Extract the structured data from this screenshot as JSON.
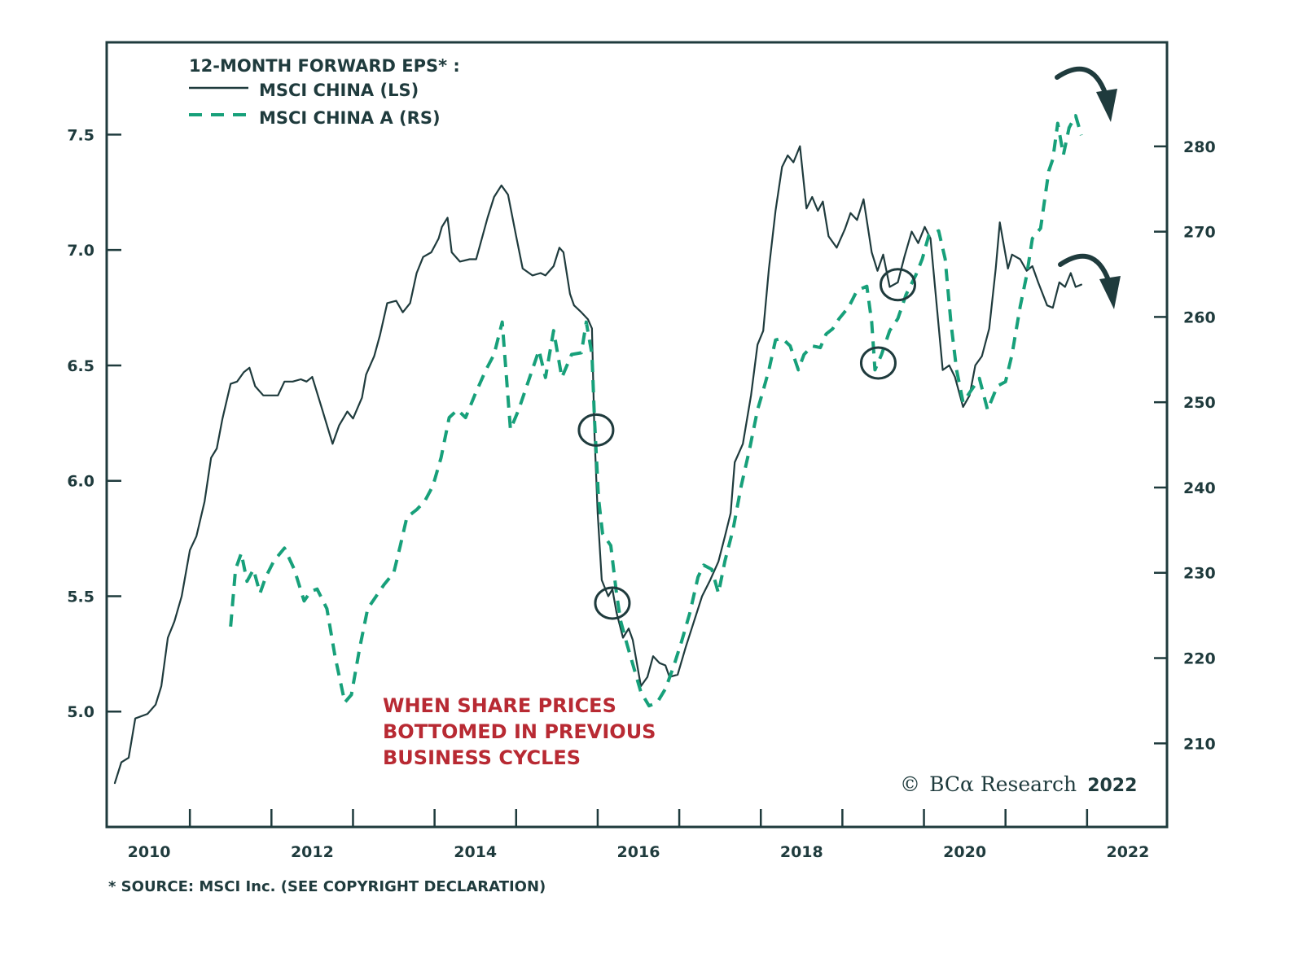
{
  "chart_data": {
    "type": "line",
    "title": "12-MONTH FORWARD EPS* :",
    "legend": {
      "placement": "top-left",
      "entries": [
        {
          "name": "MSCI CHINA (LS)",
          "style": "solid",
          "axis": "left"
        },
        {
          "name": "MSCI CHINA A (RS)",
          "style": "dashed",
          "axis": "right"
        }
      ]
    },
    "colors": {
      "msci_china": "#1f3b3d",
      "msci_china_a": "#17a07a",
      "axis": "#1f3b3d",
      "annotation": "#b82a33",
      "circle": "#1f3b3d",
      "arrow": "#1f3b3d"
    },
    "x_axis": {
      "range": [
        2009.98,
        2022.98
      ],
      "tick_labels": [
        "2010",
        "2012",
        "2014",
        "2016",
        "2018",
        "2020",
        "2022"
      ],
      "tick_label_years": [
        2010.5,
        2012.5,
        2014.5,
        2016.5,
        2018.5,
        2020.5,
        2022.5
      ],
      "major_ticks": [
        2011,
        2012,
        2013,
        2014,
        2015,
        2016,
        2017,
        2018,
        2019,
        2020,
        2021,
        2022
      ]
    },
    "y_axis_left": {
      "range": [
        4.5,
        7.9
      ],
      "ticks": [
        5.0,
        5.5,
        6.0,
        6.5,
        7.0,
        7.5
      ],
      "tick_labels": [
        "5.0",
        "5.5",
        "6.0",
        "6.5",
        "7.0",
        "7.5"
      ]
    },
    "y_axis_right": {
      "range": [
        200.2,
        292.2
      ],
      "ticks": [
        210,
        220,
        230,
        240,
        250,
        260,
        270,
        280
      ],
      "tick_labels": [
        "210",
        "220",
        "230",
        "240",
        "250",
        "260",
        "270",
        "280"
      ]
    },
    "series": [
      {
        "name": "MSCI CHINA (LS)",
        "axis": "left",
        "x": [
          2010.08,
          2010.16,
          2010.25,
          2010.33,
          2010.48,
          2010.58,
          2010.65,
          2010.73,
          2010.81,
          2010.9,
          2011.0,
          2011.08,
          2011.18,
          2011.26,
          2011.33,
          2011.4,
          2011.5,
          2011.58,
          2011.66,
          2011.73,
          2011.8,
          2011.9,
          2012.08,
          2012.16,
          2012.26,
          2012.36,
          2012.43,
          2012.5,
          2012.63,
          2012.75,
          2012.83,
          2012.93,
          2013.0,
          2013.11,
          2013.16,
          2013.26,
          2013.33,
          2013.42,
          2013.53,
          2013.61,
          2013.7,
          2013.78,
          2013.86,
          2013.96,
          2014.05,
          2014.09,
          2014.16,
          2014.21,
          2014.31,
          2014.43,
          2014.51,
          2014.65,
          2014.73,
          2014.82,
          2014.9,
          2015.0,
          2015.08,
          2015.2,
          2015.3,
          2015.36,
          2015.46,
          2015.53,
          2015.58,
          2015.66,
          2015.71,
          2015.8,
          2015.88,
          2015.93,
          2015.96,
          2016.0,
          2016.05,
          2016.13,
          2016.18,
          2016.23,
          2016.31,
          2016.38,
          2016.43,
          2016.53,
          2016.61,
          2016.68,
          2016.76,
          2016.83,
          2016.88,
          2016.98,
          2017.08,
          2017.18,
          2017.28,
          2017.38,
          2017.48,
          2017.56,
          2017.63,
          2017.68,
          2017.78,
          2017.88,
          2017.96,
          2018.03,
          2018.1,
          2018.18,
          2018.26,
          2018.33,
          2018.4,
          2018.48,
          2018.56,
          2018.63,
          2018.7,
          2018.76,
          2018.83,
          2018.93,
          2019.03,
          2019.1,
          2019.18,
          2019.26,
          2019.36,
          2019.43,
          2019.5,
          2019.58,
          2019.68,
          2019.76,
          2019.85,
          2019.93,
          2020.01,
          2020.08,
          2020.23,
          2020.31,
          2020.38,
          2020.48,
          2020.56,
          2020.63,
          2020.71,
          2020.8,
          2020.88,
          2020.93,
          2021.03,
          2021.08,
          2021.18,
          2021.26,
          2021.33,
          2021.4,
          2021.51,
          2021.58,
          2021.66,
          2021.73,
          2021.8,
          2021.86,
          2021.93
        ],
        "values": [
          4.69,
          4.78,
          4.8,
          4.97,
          4.99,
          5.03,
          5.11,
          5.32,
          5.39,
          5.5,
          5.7,
          5.76,
          5.91,
          6.1,
          6.14,
          6.27,
          6.42,
          6.43,
          6.47,
          6.49,
          6.41,
          6.37,
          6.37,
          6.43,
          6.43,
          6.44,
          6.43,
          6.45,
          6.3,
          6.16,
          6.24,
          6.3,
          6.27,
          6.36,
          6.46,
          6.54,
          6.63,
          6.77,
          6.78,
          6.73,
          6.77,
          6.9,
          6.97,
          6.99,
          7.05,
          7.1,
          7.14,
          6.99,
          6.95,
          6.96,
          6.96,
          7.14,
          7.23,
          7.28,
          7.24,
          7.06,
          6.92,
          6.89,
          6.9,
          6.89,
          6.93,
          7.01,
          6.99,
          6.81,
          6.76,
          6.73,
          6.7,
          6.66,
          6.21,
          5.86,
          5.57,
          5.5,
          5.53,
          5.43,
          5.32,
          5.36,
          5.31,
          5.11,
          5.15,
          5.24,
          5.21,
          5.2,
          5.15,
          5.16,
          5.28,
          5.39,
          5.5,
          5.57,
          5.65,
          5.76,
          5.86,
          6.08,
          6.16,
          6.37,
          6.59,
          6.65,
          6.92,
          7.17,
          7.36,
          7.41,
          7.38,
          7.45,
          7.18,
          7.23,
          7.17,
          7.21,
          7.06,
          7.01,
          7.09,
          7.16,
          7.13,
          7.22,
          6.99,
          6.91,
          6.98,
          6.84,
          6.86,
          6.97,
          7.08,
          7.03,
          7.1,
          7.05,
          6.48,
          6.5,
          6.45,
          6.32,
          6.37,
          6.5,
          6.54,
          6.66,
          6.92,
          7.12,
          6.92,
          6.98,
          6.96,
          6.91,
          6.93,
          6.86,
          6.76,
          6.75,
          6.86,
          6.84,
          6.9,
          6.84,
          6.85
        ]
      },
      {
        "name": "MSCI CHINA A (RS)",
        "axis": "right",
        "x": [
          2011.5,
          2011.56,
          2011.63,
          2011.7,
          2011.78,
          2011.86,
          2011.93,
          2012.03,
          2012.16,
          2012.28,
          2012.4,
          2012.48,
          2012.56,
          2012.68,
          2012.78,
          2012.9,
          2012.98,
          2013.08,
          2013.18,
          2013.28,
          2013.38,
          2013.5,
          2013.58,
          2013.66,
          2013.78,
          2013.88,
          2013.98,
          2014.08,
          2014.18,
          2014.28,
          2014.38,
          2014.5,
          2014.63,
          2014.73,
          2014.83,
          2014.93,
          2015.03,
          2015.13,
          2015.28,
          2015.36,
          2015.46,
          2015.56,
          2015.68,
          2015.8,
          2015.86,
          2015.93,
          2015.96,
          2016.01,
          2016.06,
          2016.16,
          2016.23,
          2016.28,
          2016.36,
          2016.46,
          2016.53,
          2016.63,
          2016.73,
          2016.83,
          2016.93,
          2017.03,
          2017.13,
          2017.23,
          2017.3,
          2017.4,
          2017.48,
          2017.56,
          2017.66,
          2017.76,
          2017.86,
          2017.96,
          2018.03,
          2018.1,
          2018.18,
          2018.26,
          2018.36,
          2018.46,
          2018.53,
          2018.63,
          2018.73,
          2018.8,
          2018.88,
          2018.96,
          2019.08,
          2019.18,
          2019.3,
          2019.36,
          2019.4,
          2019.48,
          2019.58,
          2019.68,
          2019.78,
          2019.9,
          2019.98,
          2020.06,
          2020.18,
          2020.26,
          2020.33,
          2020.4,
          2020.48,
          2020.58,
          2020.68,
          2020.78,
          2020.9,
          2021.0,
          2021.08,
          2021.18,
          2021.26,
          2021.33,
          2021.43,
          2021.53,
          2021.58,
          2021.64,
          2021.71,
          2021.78,
          2021.86,
          2021.93
        ],
        "values": [
          223.7,
          230.4,
          232.3,
          229.0,
          230.4,
          227.6,
          229.5,
          231.4,
          232.9,
          230.4,
          226.7,
          227.8,
          228.1,
          225.8,
          220.2,
          214.8,
          215.7,
          221.1,
          225.8,
          227.2,
          228.6,
          230.0,
          233.2,
          236.5,
          237.4,
          238.4,
          240.2,
          243.5,
          248.2,
          249.1,
          248.2,
          251.0,
          253.8,
          255.6,
          259.4,
          246.8,
          249.1,
          251.9,
          256.1,
          252.9,
          258.4,
          252.9,
          255.6,
          255.8,
          259.4,
          255.6,
          248.2,
          238.8,
          234.6,
          233.2,
          227.6,
          224.4,
          221.6,
          218.3,
          216.0,
          214.4,
          214.8,
          216.4,
          219.0,
          222.0,
          225.3,
          229.5,
          230.9,
          230.4,
          227.6,
          231.4,
          235.1,
          240.2,
          244.4,
          249.1,
          251.4,
          253.8,
          257.3,
          257.5,
          256.6,
          253.8,
          255.6,
          256.6,
          256.4,
          258.0,
          258.6,
          259.8,
          261.2,
          263.1,
          263.6,
          259.4,
          253.8,
          255.6,
          258.4,
          259.8,
          262.6,
          264.9,
          266.8,
          269.6,
          270.1,
          266.8,
          259.4,
          253.8,
          250.0,
          251.4,
          252.8,
          249.1,
          251.9,
          252.4,
          255.6,
          261.2,
          264.9,
          269.2,
          270.4,
          277.1,
          278.5,
          282.7,
          279.0,
          282.2,
          283.6,
          281.3
        ]
      }
    ],
    "annotations": {
      "text_lines": [
        "WHEN SHARE PRICES",
        "BOTTOMED IN PREVIOUS",
        "BUSINESS CYCLES"
      ],
      "circles": [
        {
          "series": "MSCI CHINA (LS)",
          "x": 2015.98,
          "value": 6.22
        },
        {
          "series": "MSCI CHINA (LS)",
          "x": 2016.18,
          "value": 5.47
        },
        {
          "series": "MSCI CHINA A (RS)",
          "x": 2019.44,
          "value": 254.6
        },
        {
          "series": "MSCI CHINA (LS)",
          "x": 2019.68,
          "value": 6.85
        }
      ],
      "arrows": [
        {
          "description": "downturn-arrow",
          "near_series": "MSCI CHINA A (RS)"
        },
        {
          "description": "downturn-arrow",
          "near_series": "MSCI CHINA (LS)"
        }
      ]
    },
    "footnote": "* SOURCE: MSCI Inc. (SEE COPYRIGHT DECLARATION)",
    "copyright": {
      "symbol": "©",
      "brand": "BCα Research",
      "year": "2022"
    },
    "grid": false
  }
}
